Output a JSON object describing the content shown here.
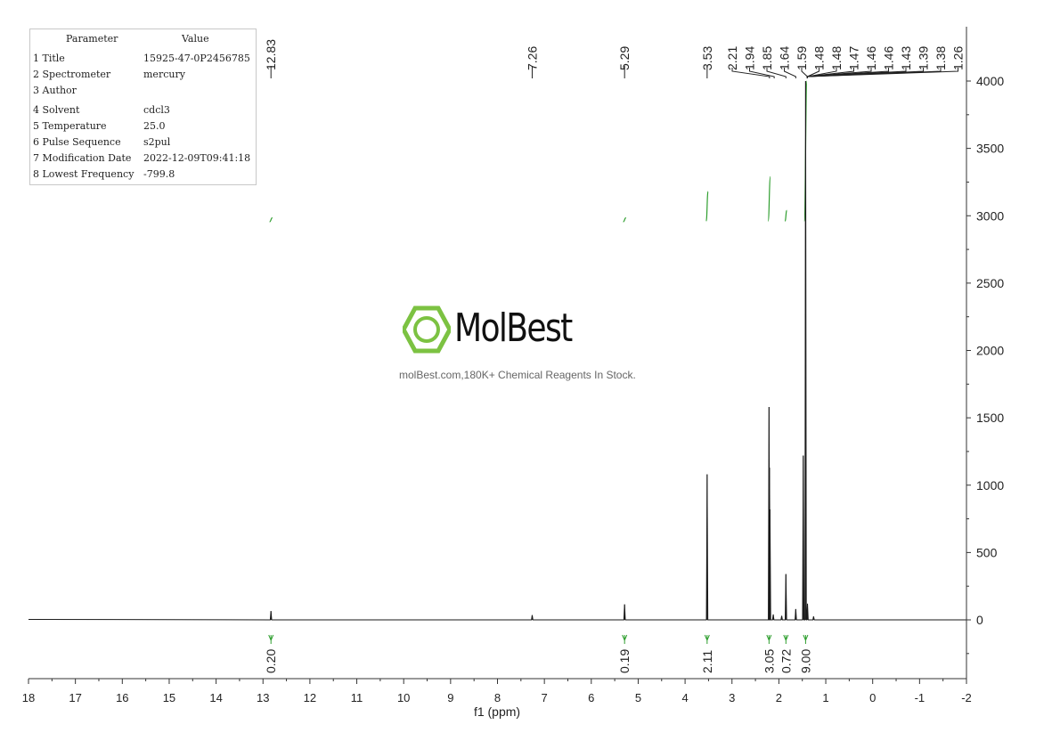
{
  "parameters": {
    "header": [
      "Parameter",
      "Value"
    ],
    "rows": [
      {
        "key": "1 Title",
        "value": "15925-47-0P2456785"
      },
      {
        "key": "2 Spectrometer",
        "value": "mercury"
      },
      {
        "key": "3 Author",
        "value": ""
      },
      {
        "key": "4 Solvent",
        "value": "cdcl3"
      },
      {
        "key": "5 Temperature",
        "value": "25.0"
      },
      {
        "key": "6 Pulse Sequence",
        "value": "s2pul"
      },
      {
        "key": "7 Modification Date",
        "value": "2022-12-09T09:41:18"
      },
      {
        "key": "8 Lowest Frequency",
        "value": "-799.8"
      }
    ]
  },
  "watermark": {
    "brand": "MolBest",
    "tagline": "molBest.com,180K+ Chemical Reagents In Stock."
  },
  "colors": {
    "spectrum": "#1a1a1a",
    "integral": "#2e9e2e",
    "logo": "#7cc242",
    "axis": "#333333"
  },
  "chart_data": {
    "type": "line",
    "xlabel": "f1 (ppm)",
    "xlim": [
      18,
      -2
    ],
    "ylim": [
      -400,
      4150
    ],
    "x_ticks": [
      18,
      17,
      16,
      15,
      14,
      13,
      12,
      11,
      10,
      9,
      8,
      7,
      6,
      5,
      4,
      3,
      2,
      1,
      0,
      -1,
      -2
    ],
    "y_ticks": [
      0,
      500,
      1000,
      1500,
      2000,
      2500,
      3000,
      3500,
      4000
    ],
    "peaks": [
      {
        "ppm": 12.83,
        "height": 65
      },
      {
        "ppm": 7.26,
        "height": 35
      },
      {
        "ppm": 5.29,
        "height": 115
      },
      {
        "ppm": 3.53,
        "height": 1080
      },
      {
        "ppm": 2.21,
        "height": 1580
      },
      {
        "ppm": 2.2,
        "height": 1130
      },
      {
        "ppm": 2.19,
        "height": 820
      },
      {
        "ppm": 2.12,
        "height": 40
      },
      {
        "ppm": 1.94,
        "height": 30
      },
      {
        "ppm": 1.85,
        "height": 340
      },
      {
        "ppm": 1.64,
        "height": 80
      },
      {
        "ppm": 1.48,
        "height": 1220
      },
      {
        "ppm": 1.43,
        "height": 4000
      },
      {
        "ppm": 1.39,
        "height": 120
      },
      {
        "ppm": 1.26,
        "height": 25
      }
    ],
    "peak_labels": [
      "12.83",
      "7.26",
      "5.29",
      "3.53",
      "2.21",
      "1.94",
      "1.85",
      "1.64",
      "1.59",
      "1.48",
      "1.48",
      "1.47",
      "1.46",
      "1.46",
      "1.43",
      "1.39",
      "1.38",
      "1.26"
    ],
    "integrals": [
      {
        "ppm": 12.83,
        "value": "0.20",
        "from": 12.86,
        "to": 12.8,
        "y_start": 2955,
        "y_end": 2985
      },
      {
        "ppm": 5.29,
        "value": "0.19",
        "from": 5.32,
        "to": 5.26,
        "y_start": 2955,
        "y_end": 2985
      },
      {
        "ppm": 3.53,
        "value": "2.11",
        "from": 3.55,
        "to": 3.51,
        "y_start": 2960,
        "y_end": 3180
      },
      {
        "ppm": 2.21,
        "value": "3.05",
        "from": 2.23,
        "to": 2.18,
        "y_start": 2960,
        "y_end": 3290
      },
      {
        "ppm": 1.85,
        "value": "0.72",
        "from": 1.87,
        "to": 1.83,
        "y_start": 2960,
        "y_end": 3040
      },
      {
        "ppm": 1.43,
        "value": "9.00",
        "from": 1.46,
        "to": 1.4,
        "y_start": 2960,
        "y_end": 4000
      }
    ]
  }
}
